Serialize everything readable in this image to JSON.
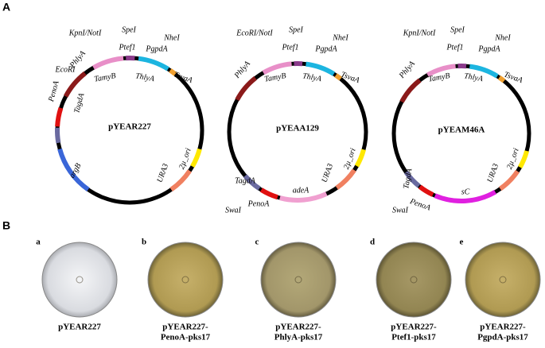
{
  "panel_a": {
    "letter": "A",
    "plasmids": [
      {
        "name": "pYEAR227",
        "labels": [
          "PenoA",
          "EcoRI",
          "TagdA",
          "PhlyA",
          "KpnI/NotI",
          "TamyB",
          "Ptef1",
          "SpeI",
          "ThlyA",
          "PgpdA",
          "NheI",
          "TsvaA",
          "argB",
          "URA3",
          "2µ_ori"
        ]
      },
      {
        "name": "pYEAA129",
        "labels": [
          "PhlyA",
          "EcoRI/NotI",
          "TamyB",
          "Ptef1",
          "SpeI",
          "ThlyA",
          "PgpdA",
          "NheI",
          "TsvaA",
          "URA3",
          "2µ_ori",
          "adeA",
          "TagdA",
          "PenoA",
          "SwaI"
        ]
      },
      {
        "name": "pYEAM46A",
        "labels": [
          "PhlyA",
          "KpnI/NotI",
          "TamyB",
          "Ptef1",
          "SpeI",
          "ThlyA",
          "PgpdA",
          "NheI",
          "TsvaA",
          "2µ_ori",
          "URA3",
          "sC",
          "TagdA",
          "PenoA",
          "SwaI"
        ]
      }
    ]
  },
  "panel_b": {
    "letter": "B",
    "plates": [
      {
        "letter": "a",
        "caption": [
          "pYEAR227"
        ]
      },
      {
        "letter": "b",
        "caption": [
          "pYEAR227-",
          "PenoA-pks17"
        ]
      },
      {
        "letter": "c",
        "caption": [
          "pYEAR227-",
          "PhlyA-pks17"
        ]
      },
      {
        "letter": "d",
        "caption": [
          "pYEAR227-",
          "Ptef1-pks17"
        ]
      },
      {
        "letter": "e",
        "caption": [
          "pYEAR227-",
          "PgpdA-pks17"
        ]
      }
    ]
  }
}
